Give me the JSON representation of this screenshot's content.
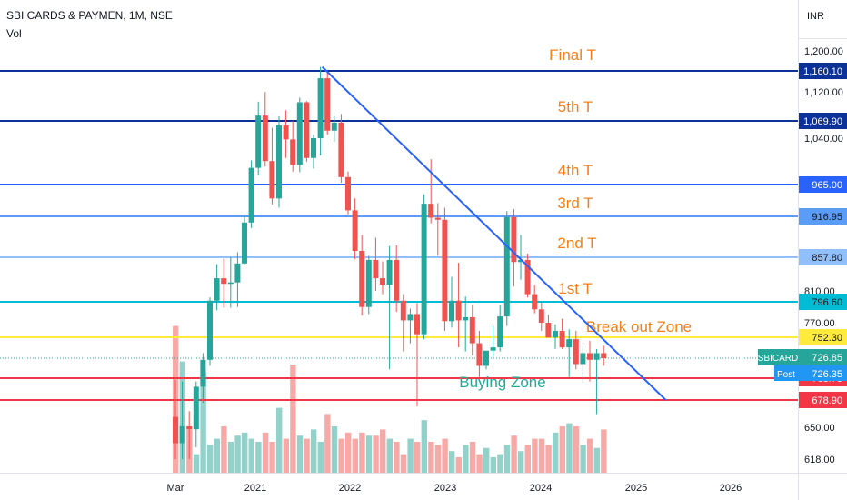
{
  "header": {
    "title": "SBI CARDS & PAYMEN, 1M, NSE",
    "volume_label": "Vol"
  },
  "currency_label": "INR",
  "chart_data": {
    "type": "candlestick",
    "price_axis": {
      "ticks": [
        "1,200.00",
        "1,120.00",
        "1,040.00",
        "965.00",
        "857.80",
        "810.00",
        "770.00",
        "726.85",
        "650.00",
        "618.00"
      ],
      "tick_values": [
        1200,
        1120,
        1040,
        965,
        857.8,
        810,
        770,
        726.85,
        650,
        618
      ]
    },
    "time_axis": {
      "labels": [
        "Mar",
        "2021",
        "2022",
        "2023",
        "2024",
        "2025",
        "2026"
      ]
    },
    "candles": [
      {
        "o": 661,
        "h": 702,
        "l": 618,
        "c": 634
      },
      {
        "o": 634,
        "h": 700,
        "l": 618,
        "c": 651
      },
      {
        "o": 651,
        "h": 667,
        "l": 618,
        "c": 648
      },
      {
        "o": 648,
        "h": 700,
        "l": 630,
        "c": 694
      },
      {
        "o": 694,
        "h": 733,
        "l": 676,
        "c": 725
      },
      {
        "o": 725,
        "h": 802,
        "l": 718,
        "c": 798
      },
      {
        "o": 798,
        "h": 848,
        "l": 786,
        "c": 828
      },
      {
        "o": 828,
        "h": 856,
        "l": 789,
        "c": 820
      },
      {
        "o": 820,
        "h": 858,
        "l": 789,
        "c": 822
      },
      {
        "o": 822,
        "h": 865,
        "l": 790,
        "c": 849
      },
      {
        "o": 849,
        "h": 918,
        "l": 848,
        "c": 908
      },
      {
        "o": 908,
        "h": 1004,
        "l": 900,
        "c": 992
      },
      {
        "o": 992,
        "h": 1103,
        "l": 980,
        "c": 1079
      },
      {
        "o": 1079,
        "h": 1120,
        "l": 994,
        "c": 1003
      },
      {
        "o": 1003,
        "h": 1058,
        "l": 935,
        "c": 944
      },
      {
        "o": 944,
        "h": 1078,
        "l": 930,
        "c": 1062
      },
      {
        "o": 1062,
        "h": 1088,
        "l": 1008,
        "c": 1038
      },
      {
        "o": 1038,
        "h": 1070,
        "l": 986,
        "c": 997
      },
      {
        "o": 997,
        "h": 1110,
        "l": 985,
        "c": 1102
      },
      {
        "o": 1102,
        "h": 1104,
        "l": 1002,
        "c": 1008
      },
      {
        "o": 1008,
        "h": 1046,
        "l": 991,
        "c": 1040
      },
      {
        "o": 1040,
        "h": 1168,
        "l": 1012,
        "c": 1146
      },
      {
        "o": 1146,
        "h": 1160,
        "l": 1046,
        "c": 1053
      },
      {
        "o": 1053,
        "h": 1078,
        "l": 1034,
        "c": 1067
      },
      {
        "o": 1067,
        "h": 1082,
        "l": 968,
        "c": 977
      },
      {
        "o": 977,
        "h": 986,
        "l": 920,
        "c": 926
      },
      {
        "o": 926,
        "h": 944,
        "l": 855,
        "c": 867
      },
      {
        "o": 867,
        "h": 890,
        "l": 779,
        "c": 790
      },
      {
        "o": 790,
        "h": 860,
        "l": 781,
        "c": 854
      },
      {
        "o": 854,
        "h": 886,
        "l": 810,
        "c": 828
      },
      {
        "o": 828,
        "h": 852,
        "l": 806,
        "c": 819
      },
      {
        "o": 819,
        "h": 874,
        "l": 714,
        "c": 854
      },
      {
        "o": 854,
        "h": 875,
        "l": 784,
        "c": 798
      },
      {
        "o": 798,
        "h": 806,
        "l": 735,
        "c": 773
      },
      {
        "o": 773,
        "h": 788,
        "l": 745,
        "c": 781
      },
      {
        "o": 781,
        "h": 795,
        "l": 672,
        "c": 756
      },
      {
        "o": 756,
        "h": 950,
        "l": 750,
        "c": 936
      },
      {
        "o": 936,
        "h": 1006,
        "l": 907,
        "c": 915
      },
      {
        "o": 915,
        "h": 937,
        "l": 860,
        "c": 912
      },
      {
        "o": 912,
        "h": 930,
        "l": 760,
        "c": 772
      },
      {
        "o": 772,
        "h": 830,
        "l": 764,
        "c": 798
      },
      {
        "o": 798,
        "h": 850,
        "l": 740,
        "c": 773
      },
      {
        "o": 773,
        "h": 803,
        "l": 735,
        "c": 777
      },
      {
        "o": 777,
        "h": 793,
        "l": 730,
        "c": 745
      },
      {
        "o": 745,
        "h": 760,
        "l": 705,
        "c": 718
      },
      {
        "o": 718,
        "h": 735,
        "l": 714,
        "c": 736
      },
      {
        "o": 736,
        "h": 766,
        "l": 728,
        "c": 740
      },
      {
        "o": 740,
        "h": 792,
        "l": 735,
        "c": 778
      },
      {
        "o": 778,
        "h": 925,
        "l": 766,
        "c": 916
      },
      {
        "o": 916,
        "h": 928,
        "l": 816,
        "c": 851
      },
      {
        "o": 851,
        "h": 890,
        "l": 826,
        "c": 854
      },
      {
        "o": 854,
        "h": 863,
        "l": 802,
        "c": 806
      },
      {
        "o": 806,
        "h": 818,
        "l": 782,
        "c": 787
      },
      {
        "o": 787,
        "h": 796,
        "l": 760,
        "c": 770
      },
      {
        "o": 770,
        "h": 780,
        "l": 752,
        "c": 752
      },
      {
        "o": 752,
        "h": 768,
        "l": 738,
        "c": 760
      },
      {
        "o": 760,
        "h": 775,
        "l": 738,
        "c": 740
      },
      {
        "o": 740,
        "h": 762,
        "l": 705,
        "c": 750
      },
      {
        "o": 750,
        "h": 760,
        "l": 714,
        "c": 720
      },
      {
        "o": 720,
        "h": 742,
        "l": 697,
        "c": 733
      },
      {
        "o": 733,
        "h": 748,
        "l": 700,
        "c": 725
      },
      {
        "o": 725,
        "h": 738,
        "l": 664,
        "c": 733
      },
      {
        "o": 733,
        "h": 742,
        "l": 718,
        "c": 726.85
      }
    ],
    "volumes": [
      0.95,
      0.72,
      0.28,
      0.12,
      0.65,
      0.18,
      0.22,
      0.3,
      0.2,
      0.24,
      0.26,
      0.22,
      0.2,
      0.26,
      0.2,
      0.42,
      0.22,
      0.7,
      0.24,
      0.22,
      0.28,
      0.2,
      0.38,
      0.3,
      0.22,
      0.26,
      0.22,
      0.26,
      0.24,
      0.24,
      0.28,
      0.22,
      0.2,
      0.12,
      0.22,
      0.2,
      0.34,
      0.2,
      0.18,
      0.22,
      0.14,
      0.1,
      0.18,
      0.2,
      0.12,
      0.16,
      0.1,
      0.12,
      0.18,
      0.24,
      0.14,
      0.18,
      0.22,
      0.22,
      0.18,
      0.26,
      0.3,
      0.32,
      0.3,
      0.18,
      0.22,
      0.16,
      0.28
    ],
    "horizontal_levels": [
      {
        "value": 1160.1,
        "label": "1,160.10",
        "color": "#0c3299",
        "text": "Final T"
      },
      {
        "value": 1069.9,
        "label": "1,069.90",
        "color": "#0c3299",
        "text": "5th T"
      },
      {
        "value": 965.0,
        "label": "965.00",
        "color": "#2962ff",
        "text": "4th T"
      },
      {
        "value": 916.95,
        "label": "916.95",
        "color": "#5b9cf6",
        "text": "3rd T"
      },
      {
        "value": 857.8,
        "label": "857.80",
        "color": "#90bff9",
        "text": "2nd T"
      },
      {
        "value": 796.6,
        "label": "796.60",
        "color": "#00bcd4",
        "text": "1st T"
      },
      {
        "value": 752.3,
        "label": "752.30",
        "color": "#ffeb3b",
        "text": "Break out Zone"
      },
      {
        "value": 703.75,
        "label": "703.75",
        "color": "#f23645",
        "text": "Buying Zone"
      },
      {
        "value": 678.9,
        "label": "678.90",
        "color": "#f23645",
        "text": ""
      }
    ],
    "current_price": {
      "symbol": "SBICARD",
      "value": "726.85",
      "color": "#26a69a"
    },
    "post_price": {
      "label": "Post",
      "value": "726.35",
      "color": "#2196f3"
    },
    "trendline": {
      "from_index": 21,
      "from_price": 1168,
      "to_month_offset": 71,
      "to_price": 678.9,
      "color": "#2962ff"
    },
    "colors": {
      "up": "#26a69a",
      "down": "#ef5350",
      "up_vol": "#93d2cb",
      "down_vol": "#f7a9a7",
      "label_orange": "#f57f17",
      "label_green": "#22ab94"
    }
  }
}
